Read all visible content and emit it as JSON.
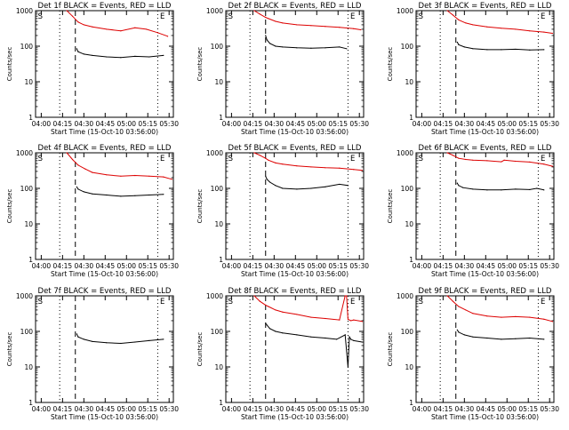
{
  "page": {
    "background": "#ffffff"
  },
  "colors": {
    "events": "#000000",
    "lld": "#dd0000",
    "axes": "#000000"
  },
  "chart_data": [
    {
      "type": "line",
      "title": "Det 1f BLACK = Events, RED = LLD",
      "xlabel": "Start Time (15-Oct-10 03:56:00)",
      "ylabel": "Counts/sec",
      "x_ticks": [
        "04:00",
        "04:15",
        "04:30",
        "04:45",
        "05:00",
        "05:15",
        "05:30"
      ],
      "y_ticks": [
        "1",
        "10",
        "100",
        "1000"
      ],
      "y_scale": "log",
      "ylim": [
        1,
        1000
      ],
      "xlim_minutes": [
        0,
        97
      ],
      "vlines_dotted": [
        0,
        17,
        86
      ],
      "vline_dashed": 28,
      "markers": [
        {
          "label": "S",
          "x": 1
        },
        {
          "label": "E",
          "x": 87
        }
      ],
      "series": [
        {
          "name": "Events",
          "color": "#000000",
          "x": [
            29,
            30,
            34,
            40,
            50,
            60,
            70,
            80,
            90
          ],
          "y": [
            85,
            70,
            60,
            55,
            50,
            48,
            52,
            50,
            55
          ]
        },
        {
          "name": "LLD",
          "color": "#dd0000",
          "x": [
            22,
            26,
            30,
            34,
            40,
            50,
            60,
            70,
            78,
            86,
            93
          ],
          "y": [
            1000,
            700,
            480,
            400,
            350,
            300,
            270,
            330,
            300,
            240,
            190
          ]
        }
      ]
    },
    {
      "type": "line",
      "title": "Det 2f BLACK = Events, RED = LLD",
      "xlabel": "Start Time (15-Oct-10 03:56:00)",
      "ylabel": "Counts/sec",
      "x_ticks": [
        "04:00",
        "04:15",
        "04:30",
        "04:45",
        "05:00",
        "05:15",
        "05:30"
      ],
      "y_ticks": [
        "1",
        "10",
        "100",
        "1000"
      ],
      "y_scale": "log",
      "ylim": [
        1,
        1000
      ],
      "xlim_minutes": [
        0,
        97
      ],
      "vlines_dotted": [
        0,
        17,
        86
      ],
      "vline_dashed": 28,
      "markers": [
        {
          "label": "S",
          "x": 1
        },
        {
          "label": "E",
          "x": 87
        }
      ],
      "series": [
        {
          "name": "Events",
          "color": "#000000",
          "x": [
            28,
            29,
            31,
            35,
            40,
            50,
            60,
            70,
            80,
            85
          ],
          "y": [
            200,
            150,
            120,
            100,
            95,
            90,
            88,
            90,
            95,
            85
          ]
        },
        {
          "name": "LLD",
          "color": "#dd0000",
          "x": [
            20,
            24,
            28,
            30,
            35,
            40,
            50,
            60,
            70,
            80,
            90,
            95
          ],
          "y": [
            1000,
            800,
            650,
            600,
            500,
            450,
            400,
            380,
            360,
            340,
            310,
            290
          ]
        }
      ]
    },
    {
      "type": "line",
      "title": "Det 3f BLACK = Events, RED = LLD",
      "xlabel": "Start Time (15-Oct-10 03:56:00)",
      "ylabel": "Counts/sec",
      "x_ticks": [
        "04:00",
        "04:15",
        "04:30",
        "04:45",
        "05:00",
        "05:15",
        "05:30"
      ],
      "y_ticks": [
        "1",
        "10",
        "100",
        "1000"
      ],
      "y_scale": "log",
      "ylim": [
        1,
        1000
      ],
      "xlim_minutes": [
        0,
        97
      ],
      "vlines_dotted": [
        0,
        17,
        86
      ],
      "vline_dashed": 28,
      "markers": [
        {
          "label": "S",
          "x": 1
        },
        {
          "label": "E",
          "x": 87
        }
      ],
      "series": [
        {
          "name": "Events",
          "color": "#000000",
          "x": [
            29,
            30,
            34,
            40,
            50,
            60,
            70,
            80,
            90
          ],
          "y": [
            130,
            110,
            95,
            85,
            80,
            80,
            82,
            78,
            80
          ]
        },
        {
          "name": "LLD",
          "color": "#dd0000",
          "x": [
            22,
            26,
            30,
            35,
            40,
            50,
            60,
            70,
            80,
            90,
            96
          ],
          "y": [
            1000,
            750,
            550,
            450,
            400,
            350,
            320,
            300,
            270,
            250,
            230
          ]
        }
      ]
    },
    {
      "type": "line",
      "title": "Det 4f BLACK = Events, RED = LLD",
      "xlabel": "Start Time (15-Oct-10 03:56:00)",
      "ylabel": "Counts/sec",
      "x_ticks": [
        "04:00",
        "04:15",
        "04:30",
        "04:45",
        "05:00",
        "05:15",
        "05:30"
      ],
      "y_ticks": [
        "1",
        "10",
        "100",
        "1000"
      ],
      "y_scale": "log",
      "ylim": [
        1,
        1000
      ],
      "xlim_minutes": [
        0,
        97
      ],
      "vlines_dotted": [
        0,
        17,
        86
      ],
      "vline_dashed": 28,
      "markers": [
        {
          "label": "S",
          "x": 1
        },
        {
          "label": "E",
          "x": 87
        }
      ],
      "series": [
        {
          "name": "Events",
          "color": "#000000",
          "x": [
            29,
            30,
            34,
            40,
            50,
            60,
            70,
            80,
            90
          ],
          "y": [
            110,
            95,
            80,
            70,
            65,
            60,
            62,
            65,
            68
          ]
        },
        {
          "name": "LLD",
          "color": "#dd0000",
          "x": [
            22,
            26,
            30,
            35,
            40,
            50,
            60,
            70,
            80,
            90,
            96
          ],
          "y": [
            1000,
            650,
            450,
            350,
            280,
            240,
            220,
            230,
            220,
            210,
            180
          ]
        }
      ]
    },
    {
      "type": "line",
      "title": "Det 5f BLACK = Events, RED = LLD",
      "xlabel": "Start Time (15-Oct-10 03:56:00)",
      "ylabel": "Counts/sec",
      "x_ticks": [
        "04:00",
        "04:15",
        "04:30",
        "04:45",
        "05:00",
        "05:15",
        "05:30"
      ],
      "y_ticks": [
        "1",
        "10",
        "100",
        "1000"
      ],
      "y_scale": "log",
      "ylim": [
        1,
        1000
      ],
      "xlim_minutes": [
        0,
        97
      ],
      "vlines_dotted": [
        0,
        17,
        86
      ],
      "vline_dashed": 28,
      "markers": [
        {
          "label": "S",
          "x": 1
        },
        {
          "label": "E",
          "x": 87
        }
      ],
      "series": [
        {
          "name": "Events",
          "color": "#000000",
          "x": [
            28,
            29,
            31,
            35,
            40,
            50,
            60,
            70,
            80,
            86
          ],
          "y": [
            220,
            180,
            150,
            120,
            100,
            95,
            100,
            110,
            130,
            120
          ]
        },
        {
          "name": "LLD",
          "color": "#dd0000",
          "x": [
            20,
            24,
            28,
            30,
            35,
            40,
            50,
            60,
            70,
            80,
            90,
            96
          ],
          "y": [
            1000,
            850,
            700,
            620,
            520,
            480,
            430,
            400,
            380,
            370,
            340,
            320
          ]
        }
      ]
    },
    {
      "type": "line",
      "title": "Det 6f BLACK = Events, RED = LLD",
      "xlabel": "Start Time (15-Oct-10 03:56:00)",
      "ylabel": "Counts/sec",
      "x_ticks": [
        "04:00",
        "04:15",
        "04:30",
        "04:45",
        "05:00",
        "05:15",
        "05:30"
      ],
      "y_ticks": [
        "1",
        "10",
        "100",
        "1000"
      ],
      "y_scale": "log",
      "ylim": [
        1,
        1000
      ],
      "xlim_minutes": [
        0,
        97
      ],
      "vlines_dotted": [
        0,
        17,
        86
      ],
      "vline_dashed": 28,
      "markers": [
        {
          "label": "S",
          "x": 1
        },
        {
          "label": "E",
          "x": 87
        }
      ],
      "series": [
        {
          "name": "Events",
          "color": "#000000",
          "x": [
            29,
            30,
            33,
            40,
            50,
            60,
            70,
            80,
            85,
            90
          ],
          "y": [
            140,
            120,
            105,
            95,
            90,
            90,
            95,
            92,
            100,
            90
          ]
        },
        {
          "name": "LLD",
          "color": "#dd0000",
          "x": [
            22,
            26,
            30,
            35,
            40,
            50,
            60,
            62,
            70,
            80,
            90,
            96
          ],
          "y": [
            1000,
            850,
            700,
            650,
            620,
            600,
            560,
            620,
            580,
            550,
            480,
            420
          ]
        }
      ]
    },
    {
      "type": "line",
      "title": "Det 7f BLACK = Events, RED = LLD",
      "xlabel": "Start Time (15-Oct-10 03:56:00)",
      "ylabel": "Counts/sec",
      "x_ticks": [
        "04:00",
        "04:15",
        "04:30",
        "04:45",
        "05:00",
        "05:15",
        "05:30"
      ],
      "y_ticks": [
        "1",
        "10",
        "100",
        "1000"
      ],
      "y_scale": "log",
      "ylim": [
        1,
        1000
      ],
      "xlim_minutes": [
        0,
        97
      ],
      "vlines_dotted": [
        0,
        17,
        86
      ],
      "vline_dashed": 28,
      "markers": [
        {
          "label": "S",
          "x": 1
        },
        {
          "label": "E",
          "x": 87
        }
      ],
      "series": [
        {
          "name": "Events",
          "color": "#000000",
          "x": [
            29,
            30,
            34,
            40,
            50,
            60,
            70,
            80,
            90
          ],
          "y": [
            85,
            70,
            60,
            52,
            48,
            46,
            50,
            55,
            60
          ]
        }
      ]
    },
    {
      "type": "line",
      "title": "Det 8f BLACK = Events, RED = LLD",
      "xlabel": "Start Time (15-Oct-10 03:56:00)",
      "ylabel": "Counts/sec",
      "x_ticks": [
        "04:00",
        "04:15",
        "04:30",
        "04:45",
        "05:00",
        "05:15",
        "05:30"
      ],
      "y_ticks": [
        "1",
        "10",
        "100",
        "1000"
      ],
      "y_scale": "log",
      "ylim": [
        1,
        1000
      ],
      "xlim_minutes": [
        0,
        97
      ],
      "vlines_dotted": [
        0,
        17,
        86
      ],
      "vline_dashed": 28,
      "markers": [
        {
          "label": "S",
          "x": 1
        },
        {
          "label": "E",
          "x": 87
        }
      ],
      "series": [
        {
          "name": "Events",
          "color": "#000000",
          "x": [
            28,
            29,
            31,
            35,
            40,
            50,
            60,
            70,
            78,
            84,
            86,
            87,
            88,
            90,
            96
          ],
          "y": [
            170,
            150,
            120,
            100,
            90,
            80,
            70,
            65,
            60,
            80,
            10,
            70,
            60,
            55,
            50
          ]
        },
        {
          "name": "LLD",
          "color": "#dd0000",
          "x": [
            20,
            24,
            28,
            30,
            35,
            40,
            50,
            60,
            70,
            80,
            84,
            85,
            86,
            88,
            90,
            96
          ],
          "y": [
            1000,
            700,
            550,
            500,
            400,
            350,
            300,
            250,
            230,
            210,
            1000,
            1000,
            220,
            200,
            210,
            190
          ]
        }
      ]
    },
    {
      "type": "line",
      "title": "Det 9f BLACK = Events, RED = LLD",
      "xlabel": "Start Time (15-Oct-10 03:56:00)",
      "ylabel": "Counts/sec",
      "x_ticks": [
        "04:00",
        "04:15",
        "04:30",
        "04:45",
        "05:00",
        "05:15",
        "05:30"
      ],
      "y_ticks": [
        "1",
        "10",
        "100",
        "1000"
      ],
      "y_scale": "log",
      "ylim": [
        1,
        1000
      ],
      "xlim_minutes": [
        0,
        97
      ],
      "vlines_dotted": [
        0,
        17,
        86
      ],
      "vline_dashed": 28,
      "markers": [
        {
          "label": "S",
          "x": 1
        },
        {
          "label": "E",
          "x": 87
        }
      ],
      "series": [
        {
          "name": "Events",
          "color": "#000000",
          "x": [
            29,
            30,
            34,
            40,
            50,
            60,
            70,
            80,
            90
          ],
          "y": [
            110,
            95,
            80,
            70,
            65,
            60,
            62,
            65,
            60
          ]
        },
        {
          "name": "LLD",
          "color": "#dd0000",
          "x": [
            22,
            26,
            30,
            35,
            40,
            50,
            60,
            70,
            80,
            90,
            96
          ],
          "y": [
            1000,
            700,
            500,
            400,
            320,
            270,
            250,
            260,
            250,
            220,
            190
          ]
        }
      ]
    }
  ]
}
